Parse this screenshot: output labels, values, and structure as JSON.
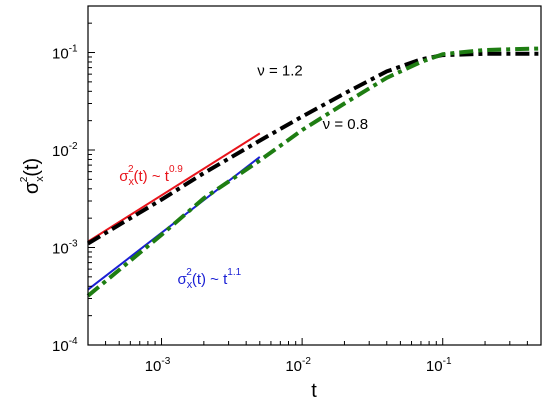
{
  "chart_data": {
    "type": "line",
    "xscale": "log",
    "yscale": "log",
    "xlim": [
      0.0003,
      0.5
    ],
    "ylim": [
      0.0001,
      0.3
    ],
    "xlabel": "t",
    "ylabel": "σ²ₓ(t)",
    "ylabel_parts": {
      "base": "σ",
      "sup": "2",
      "sub": "x",
      "tail": "(t)"
    },
    "x_ticks": [
      {
        "base": "10",
        "exp": "-3",
        "value": 0.001
      },
      {
        "base": "10",
        "exp": "-2",
        "value": 0.01
      },
      {
        "base": "10",
        "exp": "-1",
        "value": 0.1
      }
    ],
    "y_ticks": [
      {
        "base": "10",
        "exp": "-4",
        "value": 0.0001
      },
      {
        "base": "10",
        "exp": "-3",
        "value": 0.001
      },
      {
        "base": "10",
        "exp": "-2",
        "value": 0.01
      },
      {
        "base": "10",
        "exp": "-1",
        "value": 0.1
      }
    ],
    "series": [
      {
        "key": "fit09",
        "color": "#e8141b",
        "style": "solid",
        "x": [
          0.0003,
          0.005
        ],
        "y": [
          0.00115,
          0.0148
        ]
      },
      {
        "key": "fit11",
        "color": "#1a1fd4",
        "style": "solid",
        "x": [
          0.0003,
          0.005
        ],
        "y": [
          0.00037,
          0.0085
        ]
      },
      {
        "key": "nu12",
        "color": "#000000",
        "style": "dashdot",
        "x": [
          0.0003,
          0.001,
          0.002,
          0.005,
          0.01,
          0.02,
          0.04,
          0.07,
          0.1,
          0.2,
          0.3,
          0.5
        ],
        "y": [
          0.0011,
          0.0031,
          0.0058,
          0.0125,
          0.022,
          0.038,
          0.064,
          0.085,
          0.094,
          0.097,
          0.097,
          0.097
        ]
      },
      {
        "key": "nu08",
        "color": "#1e7d12",
        "style": "dashdot",
        "x": [
          0.0003,
          0.001,
          0.002,
          0.005,
          0.01,
          0.02,
          0.04,
          0.07,
          0.1,
          0.2,
          0.3,
          0.5
        ],
        "y": [
          0.00032,
          0.00135,
          0.0032,
          0.0078,
          0.016,
          0.03,
          0.055,
          0.08,
          0.096,
          0.106,
          0.108,
          0.11
        ]
      }
    ],
    "annotations": [
      {
        "key": "ann_nu12",
        "text": "ν = 1.2",
        "x": 0.0048,
        "y": 0.058,
        "color": "#000000"
      },
      {
        "key": "ann_nu08",
        "text": "ν = 0.8",
        "x": 0.014,
        "y": 0.0165,
        "color": "#000000"
      },
      {
        "key": "ann_fit09",
        "base": "σ",
        "sub": "x",
        "sup": "2",
        "mid": "(t) ~ t",
        "exp": "0.9",
        "x": 0.0005,
        "y": 0.0048,
        "color": "#e8141b"
      },
      {
        "key": "ann_fit11",
        "base": "σ",
        "sub": "x",
        "sup": "2",
        "mid": "(t) ~ t",
        "exp": "1.1",
        "x": 0.0013,
        "y": 0.00042,
        "color": "#1a1fd4"
      }
    ]
  }
}
